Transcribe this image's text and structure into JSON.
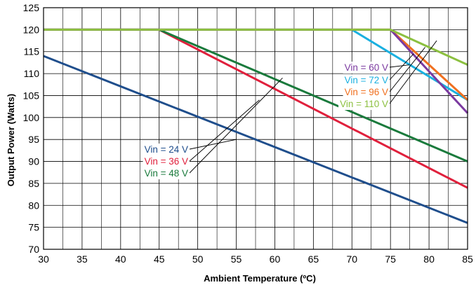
{
  "chart_data": {
    "type": "line",
    "title": "",
    "xlabel": "Ambient Temperature (ºC)",
    "ylabel": "Output Power (Watts)",
    "xlim": [
      30,
      85
    ],
    "ylim": [
      70,
      125
    ],
    "x_ticks": [
      30,
      35,
      40,
      45,
      50,
      55,
      60,
      65,
      70,
      75,
      80,
      85
    ],
    "y_ticks": [
      70,
      75,
      80,
      85,
      90,
      95,
      100,
      105,
      110,
      115,
      120,
      125
    ],
    "grid": true,
    "series": [
      {
        "name": "Vin = 24 V",
        "color": "#1f4e8c",
        "points": [
          [
            30,
            114
          ],
          [
            85,
            76
          ]
        ]
      },
      {
        "name": "Vin = 36 V",
        "color": "#e0203c",
        "points": [
          [
            30,
            120
          ],
          [
            45,
            120
          ],
          [
            85,
            84
          ]
        ]
      },
      {
        "name": "Vin = 48 V",
        "color": "#1a7a3c",
        "points": [
          [
            30,
            120
          ],
          [
            45,
            120
          ],
          [
            85,
            90
          ]
        ]
      },
      {
        "name": "Vin = 60 V",
        "color": "#7b3aa0",
        "points": [
          [
            30,
            120
          ],
          [
            75,
            120
          ],
          [
            85,
            101
          ]
        ]
      },
      {
        "name": "Vin = 72 V",
        "color": "#1ab0e0",
        "points": [
          [
            30,
            120
          ],
          [
            70,
            120
          ],
          [
            85,
            104
          ]
        ]
      },
      {
        "name": "Vin = 96 V",
        "color": "#f07020",
        "points": [
          [
            30,
            120
          ],
          [
            75,
            120
          ],
          [
            85,
            104
          ]
        ]
      },
      {
        "name": "Vin = 110 V",
        "color": "#8cc040",
        "points": [
          [
            30,
            120
          ],
          [
            75,
            120
          ],
          [
            85,
            112
          ]
        ]
      }
    ]
  }
}
